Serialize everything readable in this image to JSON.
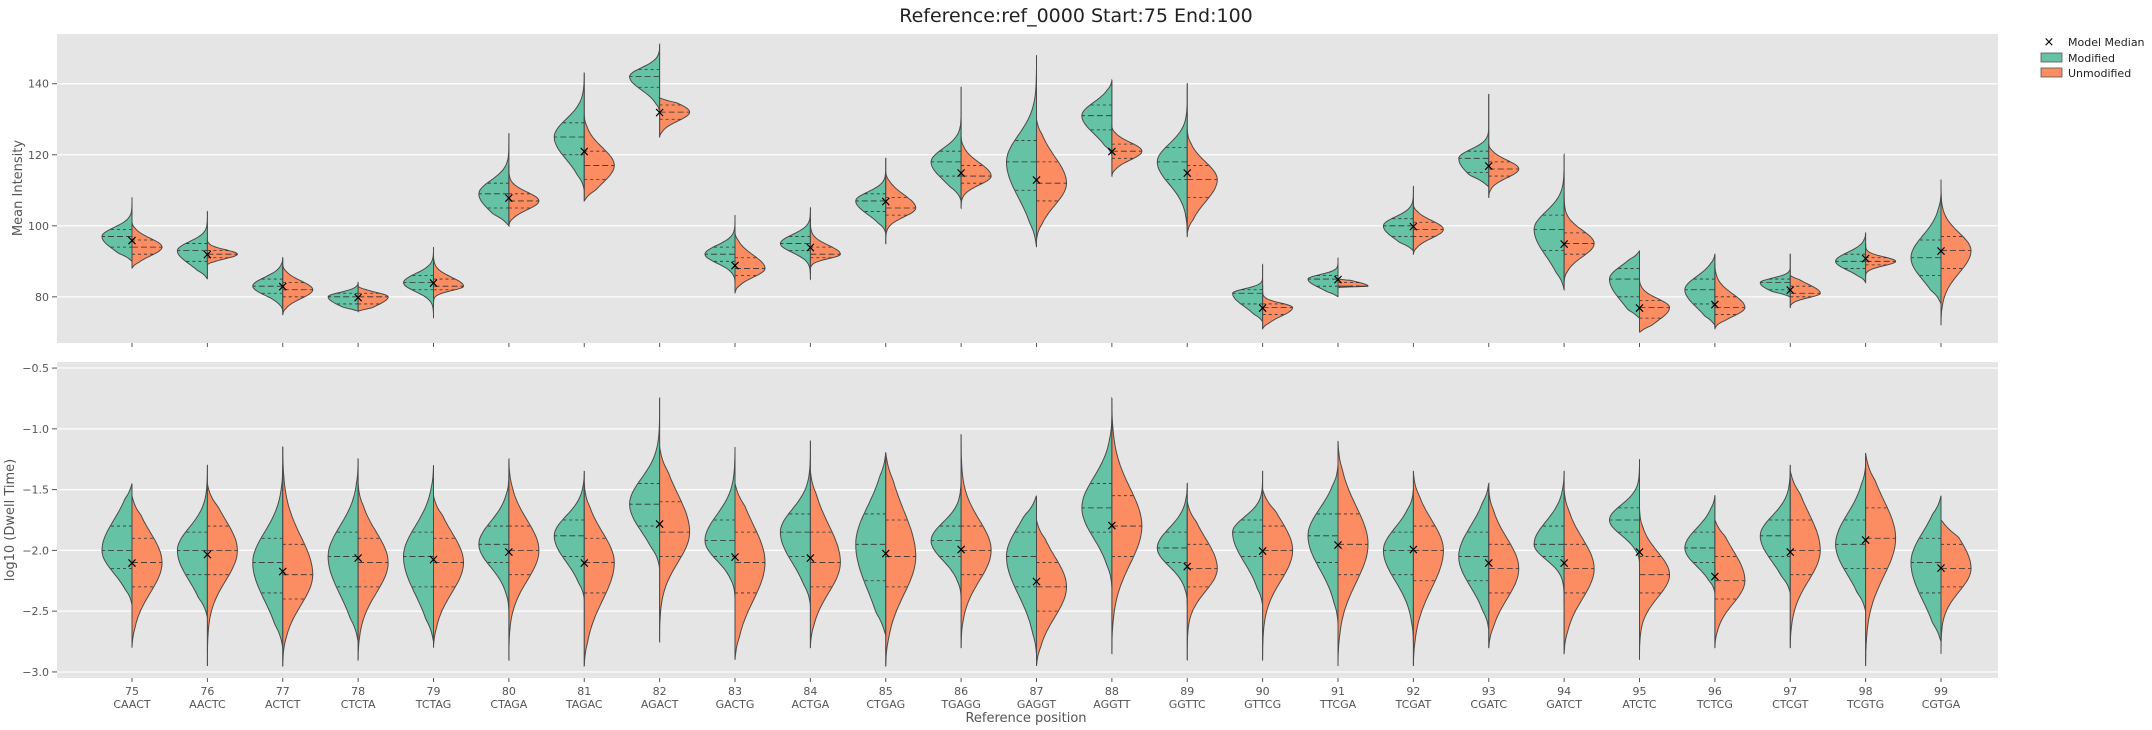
{
  "chart_data": {
    "type": "violin",
    "title": "Reference:ref_0000  Start:75  End:100",
    "xlabel": "Reference position",
    "positions": [
      "75",
      "76",
      "77",
      "78",
      "79",
      "80",
      "81",
      "82",
      "83",
      "84",
      "85",
      "86",
      "87",
      "88",
      "89",
      "90",
      "91",
      "92",
      "93",
      "94",
      "95",
      "96",
      "97",
      "98",
      "99"
    ],
    "kmers": [
      "CAACT",
      "AACTC",
      "ACTCT",
      "CTCTA",
      "TCTAG",
      "CTAGA",
      "TAGAC",
      "AGACT",
      "GACTG",
      "ACTGA",
      "CTGAG",
      "TGAGG",
      "GAGGT",
      "AGGTT",
      "GGTTC",
      "GTTCG",
      "TTCGA",
      "TCGAT",
      "CGATC",
      "GATCT",
      "ATCTC",
      "TCTCG",
      "CTCGT",
      "TCGTG",
      "CGTGA"
    ],
    "legend": {
      "position": "top-right",
      "entries": [
        "Model Median",
        "Modified",
        "Unmodified"
      ]
    },
    "colors": {
      "modified": "#66c2a5",
      "unmodified": "#fc8d62",
      "background": "#e5e5e5",
      "grid": "#ffffff"
    },
    "panels": [
      {
        "ylabel": "Mean Intensity",
        "ylim": [
          67,
          154
        ],
        "yticks": [
          80,
          100,
          120,
          140
        ],
        "series": [
          {
            "name": "Modified",
            "median": [
              97,
              93,
              83,
              80,
              84,
              109,
              125,
              142,
              92,
              95,
              107,
              118,
              118,
              131,
              118,
              81,
              85,
              100,
              119,
              99,
              85,
              82,
              84,
              90,
              91
            ],
            "q1": [
              94,
              90,
              81,
              78,
              82,
              105,
              120,
              139,
              90,
              93,
              104,
              114,
              110,
              127,
              113,
              78,
              83,
              97,
              115,
              93,
              80,
              78,
              82,
              88,
              86
            ],
            "q3": [
              99,
              95,
              85,
              81,
              86,
              112,
              129,
              144,
              94,
              97,
              109,
              121,
              124,
              134,
              122,
              82,
              86,
              102,
              121,
              103,
              88,
              85,
              85,
              92,
              96
            ],
            "min": [
              90,
              85,
              76,
              76,
              74,
              100,
              110,
              132,
              84,
              85,
              98,
              107,
              94,
              120,
              97,
              73,
              80,
              93,
              111,
              82,
              74,
              72,
              80,
              84,
              78
            ],
            "max": [
              108,
              104,
              91,
              84,
              94,
              126,
              143,
              151,
              103,
              105,
              119,
              139,
              148,
              141,
              140,
              89,
              91,
              111,
              137,
              120,
              93,
              92,
              92,
              98,
              109
            ]
          },
          {
            "name": "Unmodified",
            "median": [
              94,
              92,
              82,
              80,
              83,
              107,
              117,
              132,
              88,
              92,
              105,
              114,
              112,
              121,
              113,
              77,
              83,
              99,
              116,
              95,
              77,
              77,
              81,
              90,
              93
            ],
            "q1": [
              92,
              91,
              80,
              78,
              82,
              105,
              113,
              130,
              86,
              91,
              103,
              112,
              107,
              119,
              108,
              75,
              83,
              97,
              114,
              92,
              74,
              75,
              80,
              89,
              88
            ],
            "q3": [
              96,
              93,
              84,
              81,
              85,
              109,
              121,
              134,
              91,
              94,
              108,
              117,
              118,
              123,
              117,
              78,
              84,
              101,
              118,
              98,
              79,
              80,
              83,
              91,
              97
            ],
            "min": [
              88,
              89,
              75,
              76,
              76,
              100,
              107,
              125,
              81,
              87,
              95,
              105,
              96,
              114,
              98,
              71,
              82,
              92,
              108,
              84,
              70,
              71,
              77,
              86,
              72
            ],
            "max": [
              101,
              96,
              89,
              83,
              92,
              117,
              131,
              136,
              98,
              102,
              115,
              125,
              130,
              128,
              127,
              83,
              85,
              106,
              123,
              109,
              85,
              89,
              86,
              95,
              113
            ]
          }
        ],
        "model_median": [
          96,
          92,
          83,
          80,
          84,
          108,
          121,
          132,
          89,
          94,
          107,
          115,
          113,
          121,
          115,
          77,
          85,
          100,
          117,
          95,
          77,
          78,
          82,
          91,
          93
        ]
      },
      {
        "ylabel": "log10 (Dwell Time)",
        "ylim": [
          -3.05,
          -0.45
        ],
        "yticks": [
          -3.0,
          -2.5,
          -2.0,
          -1.5,
          -1.0,
          -0.5
        ],
        "series": [
          {
            "name": "Modified",
            "median": [
              -2.0,
              -2.0,
              -2.1,
              -2.05,
              -2.05,
              -1.95,
              -1.88,
              -1.62,
              -1.92,
              -1.85,
              -1.95,
              -1.92,
              -2.05,
              -1.65,
              -1.98,
              -1.85,
              -1.88,
              -2.0,
              -2.05,
              -1.95,
              -1.75,
              -1.98,
              -1.88,
              -1.95,
              -2.1
            ],
            "q1": [
              -2.15,
              -2.2,
              -2.35,
              -2.3,
              -2.3,
              -2.1,
              -2.05,
              -1.8,
              -2.05,
              -2.05,
              -2.25,
              -2.05,
              -2.3,
              -1.85,
              -2.1,
              -2.05,
              -2.1,
              -2.2,
              -2.25,
              -2.05,
              -1.85,
              -2.1,
              -2.05,
              -2.15,
              -2.35
            ],
            "q3": [
              -1.8,
              -1.85,
              -1.9,
              -1.85,
              -1.85,
              -1.8,
              -1.75,
              -1.45,
              -1.75,
              -1.7,
              -1.7,
              -1.8,
              -1.85,
              -1.45,
              -1.85,
              -1.75,
              -1.7,
              -1.85,
              -1.85,
              -1.8,
              -1.65,
              -1.85,
              -1.75,
              -1.75,
              -1.9
            ],
            "min": [
              -2.45,
              -2.55,
              -2.8,
              -2.75,
              -2.75,
              -2.5,
              -2.4,
              -2.15,
              -2.4,
              -2.45,
              -2.7,
              -2.4,
              -2.85,
              -2.3,
              -2.45,
              -2.45,
              -2.6,
              -2.75,
              -2.65,
              -2.45,
              -2.1,
              -2.35,
              -2.35,
              -2.5,
              -2.75
            ],
            "max": [
              -1.45,
              -1.3,
              -1.3,
              -1.25,
              -1.3,
              -1.4,
              -1.35,
              -0.75,
              -1.15,
              -1.1,
              -1.2,
              -1.35,
              -1.55,
              -0.9,
              -1.45,
              -1.35,
              -1.3,
              -1.5,
              -1.45,
              -1.35,
              -1.25,
              -1.55,
              -1.3,
              -1.3,
              -1.55
            ]
          },
          {
            "name": "Unmodified",
            "median": [
              -2.1,
              -2.0,
              -2.2,
              -2.1,
              -2.1,
              -2.0,
              -2.1,
              -1.85,
              -2.1,
              -2.1,
              -2.05,
              -2.0,
              -2.3,
              -1.8,
              -2.15,
              -2.0,
              -1.95,
              -2.0,
              -2.15,
              -2.15,
              -2.2,
              -2.25,
              -2.0,
              -1.9,
              -2.15
            ],
            "q1": [
              -2.3,
              -2.2,
              -2.4,
              -2.3,
              -2.3,
              -2.2,
              -2.35,
              -2.05,
              -2.35,
              -2.3,
              -2.3,
              -2.2,
              -2.5,
              -2.05,
              -2.3,
              -2.2,
              -2.2,
              -2.25,
              -2.35,
              -2.35,
              -2.35,
              -2.4,
              -2.2,
              -2.15,
              -2.3
            ],
            "q3": [
              -1.9,
              -1.8,
              -1.95,
              -1.9,
              -1.9,
              -1.8,
              -1.9,
              -1.6,
              -1.85,
              -1.85,
              -1.75,
              -1.8,
              -2.1,
              -1.55,
              -1.95,
              -1.8,
              -1.7,
              -1.8,
              -1.95,
              -1.95,
              -2.05,
              -2.05,
              -1.75,
              -1.65,
              -1.95
            ],
            "min": [
              -2.8,
              -2.95,
              -2.95,
              -2.9,
              -2.8,
              -2.9,
              -2.95,
              -2.75,
              -2.9,
              -2.8,
              -2.95,
              -2.8,
              -2.95,
              -2.85,
              -2.9,
              -2.9,
              -2.95,
              -2.95,
              -2.8,
              -2.85,
              -2.9,
              -2.8,
              -2.8,
              -2.95,
              -2.85
            ],
            "max": [
              -1.55,
              -1.45,
              -1.15,
              -1.45,
              -1.55,
              -1.25,
              -1.45,
              -1.15,
              -1.45,
              -1.35,
              -1.2,
              -1.05,
              -1.75,
              -0.75,
              -1.6,
              -1.5,
              -1.1,
              -1.35,
              -1.5,
              -1.5,
              -1.65,
              -1.75,
              -1.35,
              -1.2,
              -1.75
            ]
          }
        ],
        "model_median": [
          -2.1,
          -2.03,
          -2.17,
          -2.06,
          -2.07,
          -2.01,
          -2.1,
          -1.78,
          -2.05,
          -2.06,
          -2.02,
          -1.99,
          -2.25,
          -1.79,
          -2.13,
          -2.0,
          -1.95,
          -1.99,
          -2.1,
          -2.1,
          -2.01,
          -2.21,
          -2.01,
          -1.91,
          -2.14
        ]
      }
    ]
  }
}
